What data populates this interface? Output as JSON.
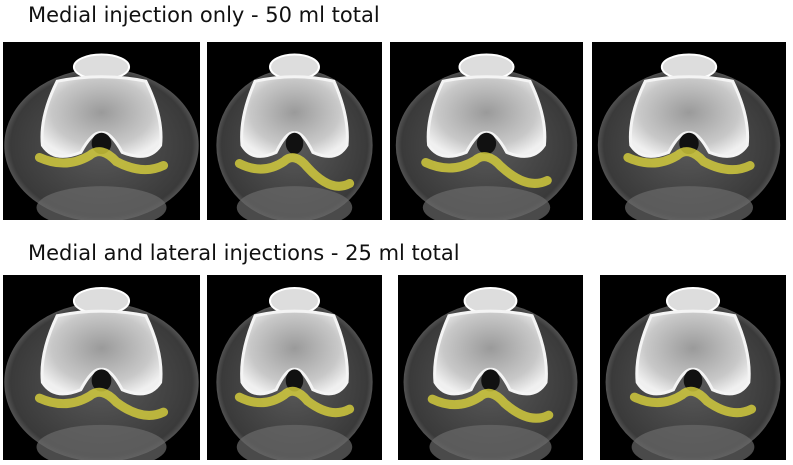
{
  "rows": [
    {
      "title": "Medial injection only - 50 ml total"
    },
    {
      "title": "Medial and lateral injections - 25 ml total"
    }
  ]
}
